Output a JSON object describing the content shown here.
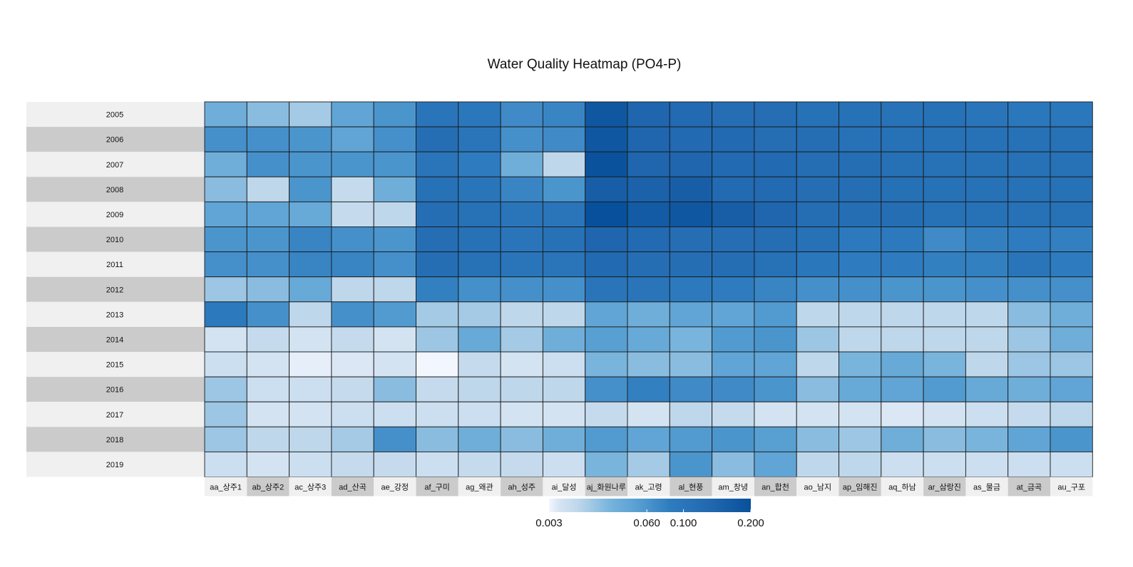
{
  "chart_data": {
    "type": "heatmap",
    "title": "Water Quality Heatmap (PO4-P)",
    "y_categories": [
      "2005",
      "2006",
      "2007",
      "2008",
      "2009",
      "2010",
      "2011",
      "2012",
      "2013",
      "2014",
      "2015",
      "2016",
      "2017",
      "2018",
      "2019"
    ],
    "x_categories": [
      "aa_상주1",
      "ab_상주2",
      "ac_상주3",
      "ad_산곡",
      "ae_강정",
      "af_구미",
      "ag_왜관",
      "ah_성주",
      "ai_달성",
      "aj_화원나루",
      "ak_고령",
      "al_현풍",
      "am_창녕",
      "an_합천",
      "ao_남지",
      "ap_임해진",
      "aq_하남",
      "ar_삼랑진",
      "as_물금",
      "at_금곡",
      "au_구포"
    ],
    "values": [
      [
        0.035,
        0.025,
        0.018,
        0.045,
        0.06,
        0.1,
        0.095,
        0.07,
        0.075,
        0.18,
        0.14,
        0.13,
        0.12,
        0.12,
        0.11,
        0.11,
        0.105,
        0.11,
        0.1,
        0.095,
        0.095
      ],
      [
        0.065,
        0.065,
        0.06,
        0.045,
        0.065,
        0.12,
        0.1,
        0.065,
        0.07,
        0.18,
        0.14,
        0.13,
        0.13,
        0.12,
        0.12,
        0.11,
        0.11,
        0.11,
        0.11,
        0.11,
        0.11
      ],
      [
        0.035,
        0.065,
        0.06,
        0.06,
        0.06,
        0.1,
        0.085,
        0.035,
        0.012,
        0.195,
        0.14,
        0.14,
        0.13,
        0.13,
        0.12,
        0.12,
        0.115,
        0.11,
        0.11,
        0.11,
        0.11
      ],
      [
        0.025,
        0.012,
        0.06,
        0.01,
        0.035,
        0.11,
        0.1,
        0.075,
        0.06,
        0.16,
        0.15,
        0.16,
        0.13,
        0.13,
        0.12,
        0.12,
        0.115,
        0.11,
        0.11,
        0.11,
        0.11
      ],
      [
        0.045,
        0.045,
        0.04,
        0.01,
        0.012,
        0.12,
        0.11,
        0.1,
        0.1,
        0.2,
        0.17,
        0.18,
        0.16,
        0.14,
        0.12,
        0.12,
        0.12,
        0.11,
        0.11,
        0.11,
        0.11
      ],
      [
        0.06,
        0.06,
        0.075,
        0.065,
        0.06,
        0.12,
        0.11,
        0.1,
        0.11,
        0.14,
        0.13,
        0.12,
        0.12,
        0.12,
        0.11,
        0.09,
        0.09,
        0.07,
        0.08,
        0.085,
        0.08
      ],
      [
        0.065,
        0.065,
        0.075,
        0.075,
        0.065,
        0.12,
        0.11,
        0.1,
        0.1,
        0.13,
        0.12,
        0.12,
        0.12,
        0.11,
        0.095,
        0.085,
        0.085,
        0.08,
        0.08,
        0.1,
        0.085
      ],
      [
        0.02,
        0.025,
        0.04,
        0.012,
        0.012,
        0.08,
        0.065,
        0.065,
        0.065,
        0.1,
        0.1,
        0.09,
        0.085,
        0.075,
        0.065,
        0.065,
        0.06,
        0.06,
        0.065,
        0.065,
        0.065
      ],
      [
        0.09,
        0.065,
        0.012,
        0.065,
        0.055,
        0.018,
        0.018,
        0.012,
        0.012,
        0.045,
        0.035,
        0.045,
        0.045,
        0.055,
        0.012,
        0.012,
        0.012,
        0.012,
        0.012,
        0.025,
        0.035
      ],
      [
        0.006,
        0.01,
        0.006,
        0.01,
        0.006,
        0.02,
        0.04,
        0.018,
        0.035,
        0.05,
        0.04,
        0.03,
        0.055,
        0.06,
        0.02,
        0.012,
        0.012,
        0.012,
        0.012,
        0.02,
        0.035
      ],
      [
        0.008,
        0.006,
        0.004,
        0.005,
        0.006,
        0.003,
        0.01,
        0.006,
        0.008,
        0.03,
        0.025,
        0.025,
        0.045,
        0.045,
        0.012,
        0.03,
        0.04,
        0.03,
        0.012,
        0.02,
        0.02
      ],
      [
        0.02,
        0.008,
        0.008,
        0.01,
        0.025,
        0.01,
        0.012,
        0.012,
        0.012,
        0.065,
        0.08,
        0.07,
        0.07,
        0.06,
        0.025,
        0.04,
        0.045,
        0.055,
        0.04,
        0.035,
        0.045
      ],
      [
        0.02,
        0.006,
        0.006,
        0.008,
        0.008,
        0.008,
        0.008,
        0.006,
        0.006,
        0.01,
        0.006,
        0.012,
        0.01,
        0.006,
        0.006,
        0.006,
        0.005,
        0.006,
        0.008,
        0.01,
        0.012
      ],
      [
        0.02,
        0.012,
        0.012,
        0.018,
        0.065,
        0.025,
        0.035,
        0.025,
        0.035,
        0.055,
        0.045,
        0.055,
        0.06,
        0.05,
        0.025,
        0.02,
        0.035,
        0.025,
        0.03,
        0.045,
        0.06
      ],
      [
        0.008,
        0.006,
        0.008,
        0.01,
        0.01,
        0.008,
        0.01,
        0.01,
        0.008,
        0.03,
        0.018,
        0.06,
        0.025,
        0.045,
        0.012,
        0.012,
        0.008,
        0.008,
        0.008,
        0.008,
        0.008
      ]
    ],
    "color_scale": {
      "low": "#f2f5ff",
      "high": "#08509b",
      "mid": "#2a7abf"
    },
    "legend": {
      "position": "bottom",
      "tick_labels": [
        "0.003",
        "0.060",
        "0.100",
        "0.200"
      ],
      "tick_values": [
        0.003,
        0.06,
        0.1,
        0.2
      ]
    },
    "row_label_colors": [
      "#f0f0f0",
      "#cbcbcb"
    ]
  }
}
